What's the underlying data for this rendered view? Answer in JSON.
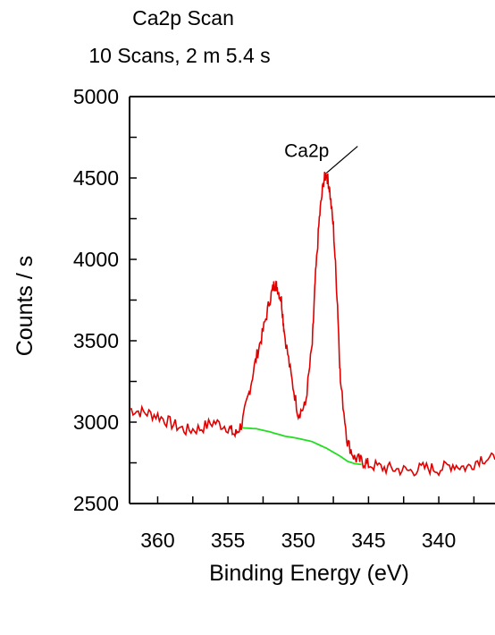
{
  "chart_data": {
    "type": "line",
    "title": "Ca2p Scan",
    "subtitle": "10 Scans,  2 m 5.4 s",
    "xlabel": "Binding Energy  (eV)",
    "ylabel": "Counts / s",
    "xlim": [
      362,
      336
    ],
    "ylim": [
      2500,
      5000
    ],
    "x_reversed": true,
    "x_ticks": [
      360,
      355,
      350,
      345,
      340
    ],
    "y_ticks": [
      2500,
      3000,
      3500,
      4000,
      4500,
      5000
    ],
    "grid": false,
    "series": [
      {
        "color": "#e00000",
        "x": [
          362,
          361,
          360,
          359,
          358,
          357,
          356,
          355,
          354.5,
          354,
          353.5,
          353,
          352.5,
          352,
          351.7,
          351.5,
          351.2,
          351,
          350.5,
          350,
          349.5,
          349,
          348.8,
          348.5,
          348.2,
          348,
          347.8,
          347.5,
          347.2,
          347,
          346.5,
          346,
          345.5,
          345,
          344,
          343,
          342,
          341,
          340,
          339,
          338,
          337,
          336
        ],
        "y": [
          3080,
          3060,
          3040,
          2990,
          2950,
          2960,
          3000,
          2970,
          2920,
          2990,
          3180,
          3390,
          3560,
          3760,
          3850,
          3830,
          3750,
          3560,
          3280,
          3050,
          3100,
          3480,
          3850,
          4250,
          4480,
          4530,
          4450,
          4200,
          3720,
          3250,
          2880,
          2780,
          2760,
          2740,
          2720,
          2710,
          2700,
          2720,
          2710,
          2740,
          2720,
          2780,
          2770
        ]
      },
      {
        "color": "#22dd22",
        "x": [
          354,
          353,
          352,
          351,
          350,
          349,
          348,
          347,
          346.5,
          346,
          345.5
        ],
        "y": [
          2965,
          2960,
          2940,
          2915,
          2900,
          2880,
          2840,
          2790,
          2760,
          2745,
          2740
        ]
      }
    ],
    "annotations": [
      {
        "text": "Ca2p",
        "x": 348,
        "y": 4530
      }
    ]
  }
}
